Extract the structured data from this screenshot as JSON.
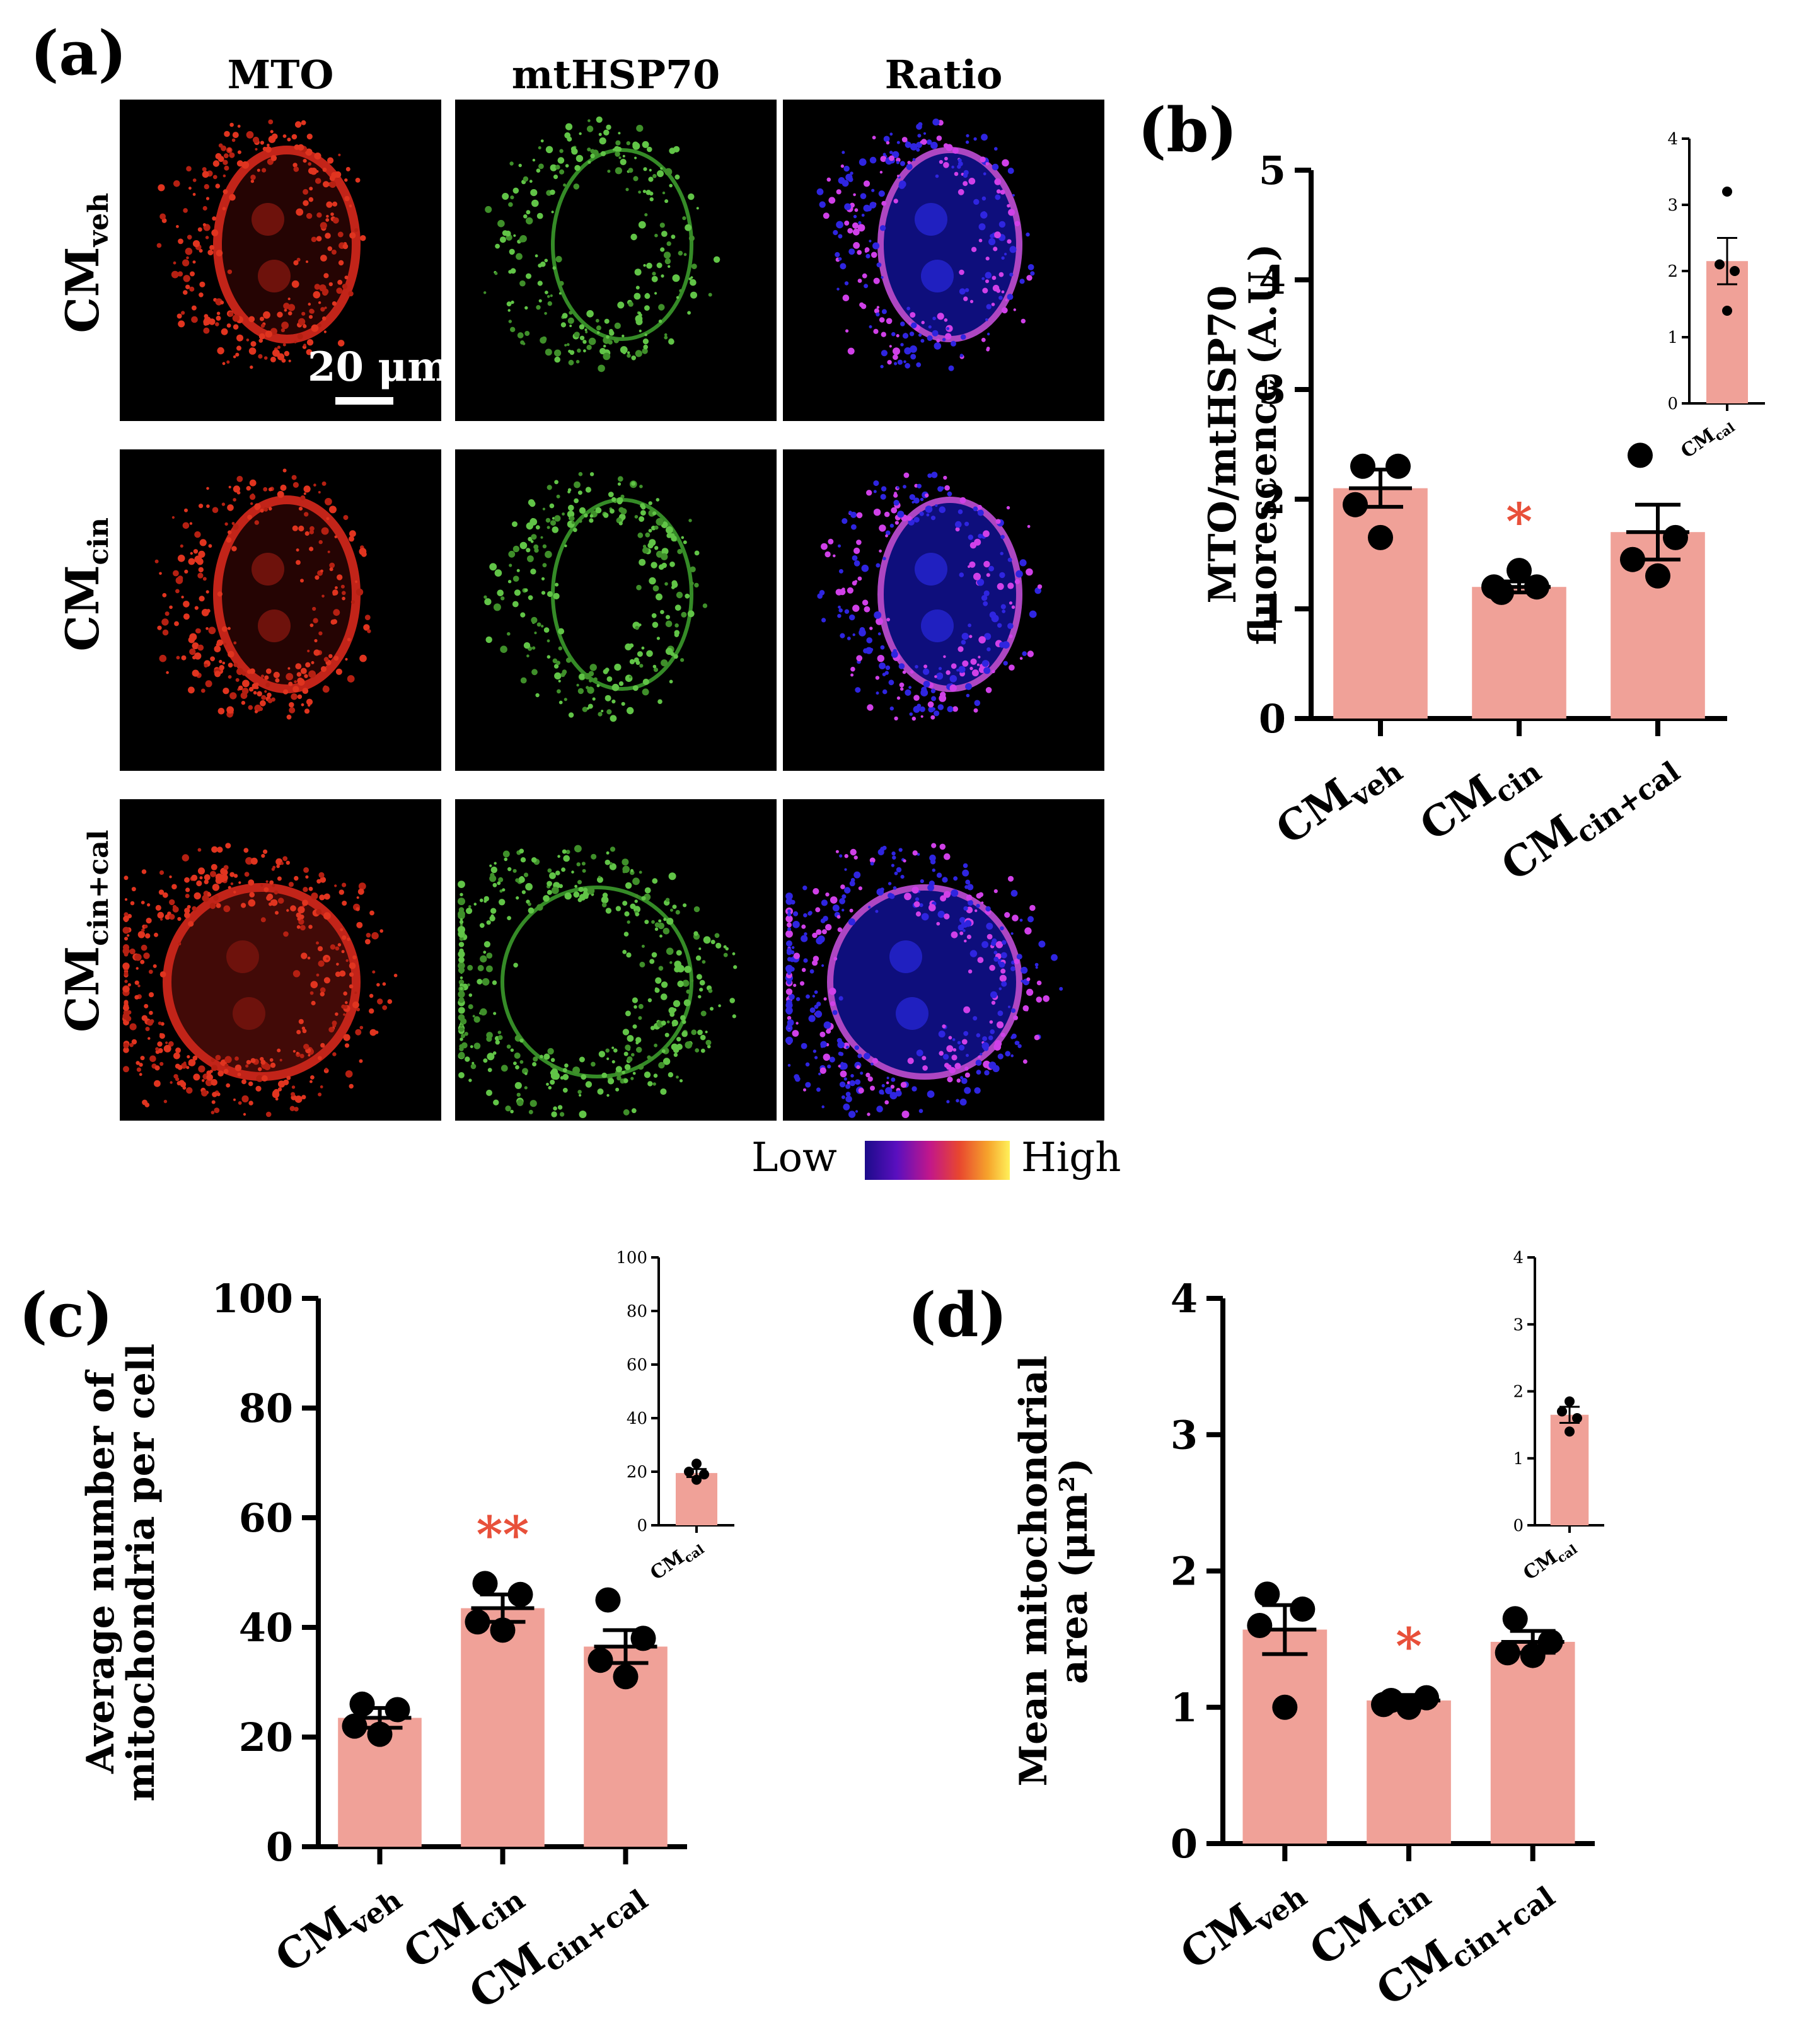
{
  "panel_a": {
    "letter": "(a)",
    "columns": [
      "MTO",
      "mtHSP70",
      "Ratio"
    ],
    "rows": [
      {
        "main": "CM",
        "sub": "veh"
      },
      {
        "main": "CM",
        "sub": "cin"
      },
      {
        "main": "CM",
        "sub": "cin+cal"
      }
    ],
    "scale_bar": "20 μm",
    "colorbar": {
      "low": "Low",
      "high": "High",
      "colors": [
        "#1c0b8a",
        "#5a0fbf",
        "#c2178a",
        "#e8462f",
        "#f6a42c",
        "#fff15a"
      ]
    }
  },
  "chart_data": [
    {
      "id": "b",
      "letter": "(b)",
      "type": "bar",
      "ylabel": [
        "MTO/mtHSP70",
        "fluorescence (A.U.)"
      ],
      "categories": [
        {
          "main": "CM",
          "sub": "veh"
        },
        {
          "main": "CM",
          "sub": "cin"
        },
        {
          "main": "CM",
          "sub": "cin+cal"
        }
      ],
      "values": [
        2.1,
        1.2,
        1.7
      ],
      "sem": [
        0.17,
        0.05,
        0.25
      ],
      "points": [
        [
          2.3,
          2.3,
          1.95,
          1.65
        ],
        [
          1.15,
          1.2,
          1.2,
          1.35
        ],
        [
          2.4,
          1.65,
          1.45,
          1.3
        ]
      ],
      "significance": [
        "",
        "*",
        ""
      ],
      "ylim": [
        0,
        5
      ],
      "yticks": [
        0,
        1,
        2,
        3,
        4,
        5
      ],
      "bar_color": "#f0a198",
      "sig_color": "#e8503a",
      "inset": {
        "type": "bar",
        "category": {
          "main": "CM",
          "sub": "cal"
        },
        "value": 2.15,
        "sem": 0.35,
        "points": [
          3.2,
          2.1,
          2.0,
          1.4
        ],
        "ylim": [
          0,
          4
        ],
        "yticks": [
          0,
          1,
          2,
          3,
          4
        ]
      }
    },
    {
      "id": "c",
      "letter": "(c)",
      "type": "bar",
      "ylabel": [
        "Average number of",
        "mitochondria per cell"
      ],
      "categories": [
        {
          "main": "CM",
          "sub": "veh"
        },
        {
          "main": "CM",
          "sub": "cin"
        },
        {
          "main": "CM",
          "sub": "cin+cal"
        }
      ],
      "values": [
        23.5,
        43.5,
        36.5
      ],
      "sem": [
        1.8,
        2.5,
        3.0
      ],
      "points": [
        [
          26,
          25,
          22,
          20.5
        ],
        [
          48,
          46,
          41,
          39.5
        ],
        [
          45,
          38,
          34,
          31
        ]
      ],
      "significance": [
        "",
        "**",
        ""
      ],
      "ylim": [
        0,
        100
      ],
      "yticks": [
        0,
        20,
        40,
        60,
        80,
        100
      ],
      "bar_color": "#f0a198",
      "sig_color": "#e8503a",
      "inset": {
        "type": "bar",
        "category": {
          "main": "CM",
          "sub": "cal"
        },
        "value": 19.5,
        "sem": 1.5,
        "points": [
          23,
          20,
          19,
          17
        ],
        "ylim": [
          0,
          100
        ],
        "yticks": [
          0,
          20,
          40,
          60,
          80,
          100
        ]
      }
    },
    {
      "id": "d",
      "letter": "(d)",
      "type": "bar",
      "ylabel": [
        "Mean mitochondrial",
        "area (μm²)"
      ],
      "categories": [
        {
          "main": "CM",
          "sub": "veh"
        },
        {
          "main": "CM",
          "sub": "cin"
        },
        {
          "main": "CM",
          "sub": "cin+cal"
        }
      ],
      "values": [
        1.57,
        1.05,
        1.48
      ],
      "sem": [
        0.18,
        0.04,
        0.08
      ],
      "points": [
        [
          1.83,
          1.72,
          1.6,
          1.0
        ],
        [
          1.05,
          1.07,
          1.02,
          1.0
        ],
        [
          1.65,
          1.48,
          1.4,
          1.38
        ]
      ],
      "significance": [
        "",
        "*",
        ""
      ],
      "ylim": [
        0,
        4
      ],
      "yticks": [
        0,
        1,
        2,
        3,
        4
      ],
      "bar_color": "#f0a198",
      "sig_color": "#e8503a",
      "inset": {
        "type": "bar",
        "category": {
          "main": "CM",
          "sub": "cal"
        },
        "value": 1.65,
        "sem": 0.12,
        "points": [
          1.85,
          1.7,
          1.6,
          1.4
        ],
        "ylim": [
          0,
          4
        ],
        "yticks": [
          0,
          1,
          2,
          3,
          4
        ]
      }
    }
  ]
}
